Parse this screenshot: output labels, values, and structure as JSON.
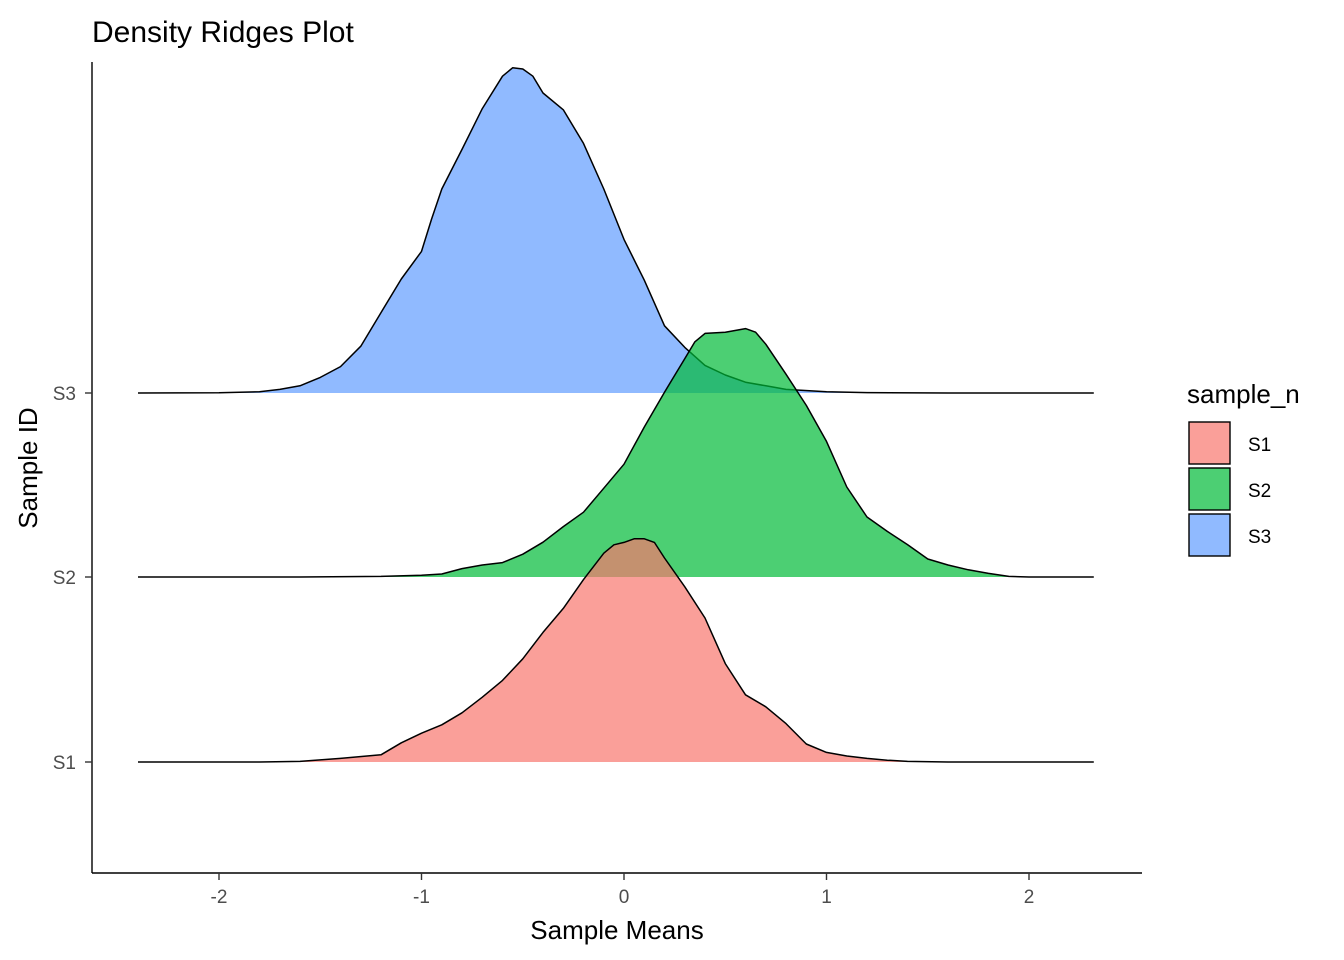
{
  "chart_data": {
    "type": "area",
    "subtype": "density-ridges",
    "title": "Density Ridges Plot",
    "xlabel": "Sample Means",
    "ylabel": "Sample ID",
    "xlim": [
      -2.64,
      2.56
    ],
    "x_ticks": [
      -2,
      -1,
      0,
      1,
      2
    ],
    "x_tick_labels": [
      "-2",
      "-1",
      "0",
      "1",
      "2"
    ],
    "categories": [
      "S1",
      "S2",
      "S3"
    ],
    "legend": {
      "title": "sample_n",
      "position": "right",
      "entries": [
        "S1",
        "S2",
        "S3"
      ]
    },
    "grid": false,
    "opacity": 0.7,
    "series": [
      {
        "name": "S1",
        "color": "#F8766D",
        "points": [
          [
            -2.4,
            0.0
          ],
          [
            -2.0,
            0.0
          ],
          [
            -1.8,
            0.0
          ],
          [
            -1.6,
            0.005
          ],
          [
            -1.4,
            0.03
          ],
          [
            -1.2,
            0.06
          ],
          [
            -1.1,
            0.16
          ],
          [
            -1.0,
            0.24
          ],
          [
            -0.9,
            0.31
          ],
          [
            -0.8,
            0.41
          ],
          [
            -0.7,
            0.54
          ],
          [
            -0.6,
            0.68
          ],
          [
            -0.5,
            0.86
          ],
          [
            -0.4,
            1.08
          ],
          [
            -0.3,
            1.28
          ],
          [
            -0.2,
            1.52
          ],
          [
            -0.1,
            1.74
          ],
          [
            -0.05,
            1.81
          ],
          [
            0.0,
            1.83
          ],
          [
            0.05,
            1.86
          ],
          [
            0.1,
            1.86
          ],
          [
            0.15,
            1.83
          ],
          [
            0.2,
            1.7
          ],
          [
            0.3,
            1.46
          ],
          [
            0.4,
            1.2
          ],
          [
            0.5,
            0.82
          ],
          [
            0.6,
            0.56
          ],
          [
            0.7,
            0.46
          ],
          [
            0.8,
            0.32
          ],
          [
            0.9,
            0.15
          ],
          [
            1.0,
            0.08
          ],
          [
            1.1,
            0.05
          ],
          [
            1.2,
            0.03
          ],
          [
            1.3,
            0.015
          ],
          [
            1.4,
            0.005
          ],
          [
            1.6,
            0.0
          ],
          [
            2.0,
            0.0
          ],
          [
            2.32,
            0.0
          ]
        ]
      },
      {
        "name": "S2",
        "color": "#00BA38",
        "points": [
          [
            -2.4,
            0.0
          ],
          [
            -1.6,
            0.0
          ],
          [
            -1.2,
            0.005
          ],
          [
            -1.0,
            0.015
          ],
          [
            -0.9,
            0.025
          ],
          [
            -0.8,
            0.07
          ],
          [
            -0.7,
            0.1
          ],
          [
            -0.6,
            0.12
          ],
          [
            -0.5,
            0.19
          ],
          [
            -0.4,
            0.29
          ],
          [
            -0.3,
            0.42
          ],
          [
            -0.2,
            0.54
          ],
          [
            -0.1,
            0.74
          ],
          [
            0.0,
            0.94
          ],
          [
            0.1,
            1.25
          ],
          [
            0.2,
            1.54
          ],
          [
            0.3,
            1.82
          ],
          [
            0.35,
            1.96
          ],
          [
            0.4,
            2.03
          ],
          [
            0.5,
            2.04
          ],
          [
            0.6,
            2.07
          ],
          [
            0.65,
            2.04
          ],
          [
            0.7,
            1.94
          ],
          [
            0.8,
            1.69
          ],
          [
            0.9,
            1.43
          ],
          [
            1.0,
            1.13
          ],
          [
            1.1,
            0.75
          ],
          [
            1.2,
            0.5
          ],
          [
            1.3,
            0.38
          ],
          [
            1.4,
            0.27
          ],
          [
            1.5,
            0.15
          ],
          [
            1.6,
            0.1
          ],
          [
            1.7,
            0.06
          ],
          [
            1.8,
            0.03
          ],
          [
            1.9,
            0.005
          ],
          [
            2.0,
            0.0
          ],
          [
            2.32,
            0.0
          ]
        ]
      },
      {
        "name": "S3",
        "color": "#619CFF",
        "points": [
          [
            -2.4,
            0.0
          ],
          [
            -2.0,
            0.002
          ],
          [
            -1.8,
            0.01
          ],
          [
            -1.7,
            0.03
          ],
          [
            -1.6,
            0.06
          ],
          [
            -1.5,
            0.13
          ],
          [
            -1.4,
            0.22
          ],
          [
            -1.3,
            0.39
          ],
          [
            -1.2,
            0.67
          ],
          [
            -1.1,
            0.95
          ],
          [
            -1.0,
            1.18
          ],
          [
            -0.95,
            1.45
          ],
          [
            -0.9,
            1.7
          ],
          [
            -0.8,
            2.03
          ],
          [
            -0.7,
            2.37
          ],
          [
            -0.6,
            2.64
          ],
          [
            -0.55,
            2.71
          ],
          [
            -0.5,
            2.7
          ],
          [
            -0.45,
            2.64
          ],
          [
            -0.4,
            2.5
          ],
          [
            -0.3,
            2.36
          ],
          [
            -0.2,
            2.08
          ],
          [
            -0.1,
            1.7
          ],
          [
            0.0,
            1.28
          ],
          [
            0.1,
            0.94
          ],
          [
            0.2,
            0.56
          ],
          [
            0.3,
            0.38
          ],
          [
            0.4,
            0.23
          ],
          [
            0.5,
            0.15
          ],
          [
            0.6,
            0.09
          ],
          [
            0.7,
            0.06
          ],
          [
            0.8,
            0.03
          ],
          [
            1.0,
            0.01
          ],
          [
            1.2,
            0.003
          ],
          [
            1.6,
            0.0
          ],
          [
            2.32,
            0.0
          ]
        ]
      }
    ]
  }
}
